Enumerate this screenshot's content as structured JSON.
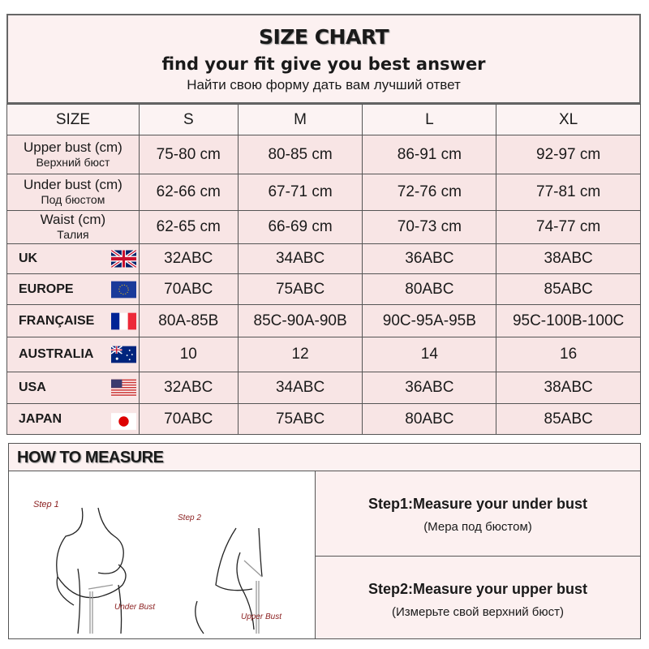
{
  "header": {
    "title": "SIZE CHART",
    "subtitle": "find your fit give you best answer",
    "subtitle_ru": "Найти свою форму дать вам лучший ответ"
  },
  "table": {
    "columns": [
      "SIZE",
      "S",
      "M",
      "L",
      "XL"
    ],
    "measure_rows": [
      {
        "label": "Upper bust (cm)",
        "label_ru": "Верхний бюст",
        "values": [
          "75-80 cm",
          "80-85 cm",
          "86-91 cm",
          "92-97 cm"
        ]
      },
      {
        "label": "Under bust (cm)",
        "label_ru": "Под бюстом",
        "values": [
          "62-66 cm",
          "67-71 cm",
          "72-76 cm",
          "77-81 cm"
        ]
      },
      {
        "label": "Waist (cm)",
        "label_ru": "Талия",
        "values": [
          "62-65 cm",
          "66-69 cm",
          "70-73 cm",
          "74-77 cm"
        ]
      }
    ],
    "country_rows": [
      {
        "label": "UK",
        "flag": "uk-flag",
        "values": [
          "32ABC",
          "34ABC",
          "36ABC",
          "38ABC"
        ]
      },
      {
        "label": "EUROPE",
        "flag": "eu-flag",
        "values": [
          "70ABC",
          "75ABC",
          "80ABC",
          "85ABC"
        ]
      },
      {
        "label": "FRANÇAISE",
        "flag": "france-flag",
        "values": [
          "80A-85B",
          "85C-90A-90B",
          "90C-95A-95B",
          "95C-100B-100C"
        ]
      },
      {
        "label": "AUSTRALIA",
        "flag": "australia-flag",
        "values": [
          "10",
          "12",
          "14",
          "16"
        ]
      },
      {
        "label": "USA",
        "flag": "usa-flag",
        "values": [
          "32ABC",
          "34ABC",
          "36ABC",
          "38ABC"
        ]
      },
      {
        "label": "JAPAN",
        "flag": "japan-flag",
        "values": [
          "70ABC",
          "75ABC",
          "80ABC",
          "85ABC"
        ]
      }
    ]
  },
  "measure": {
    "title": "HOW TO MEASURE",
    "illustration": {
      "step1": "Step 1",
      "step1_caption": "Under Bust",
      "step2": "Step 2",
      "step2_caption": "Upper Bust"
    },
    "steps": [
      {
        "text": "Step1:Measure your under bust",
        "text_ru": "(Мера под бюстом)"
      },
      {
        "text": "Step2:Measure your upper bust",
        "text_ru": "(Измерьте свой верхний бюст)"
      }
    ]
  },
  "colors": {
    "background_pink": "#f8e5e5",
    "caption_red": "#8b2020"
  }
}
